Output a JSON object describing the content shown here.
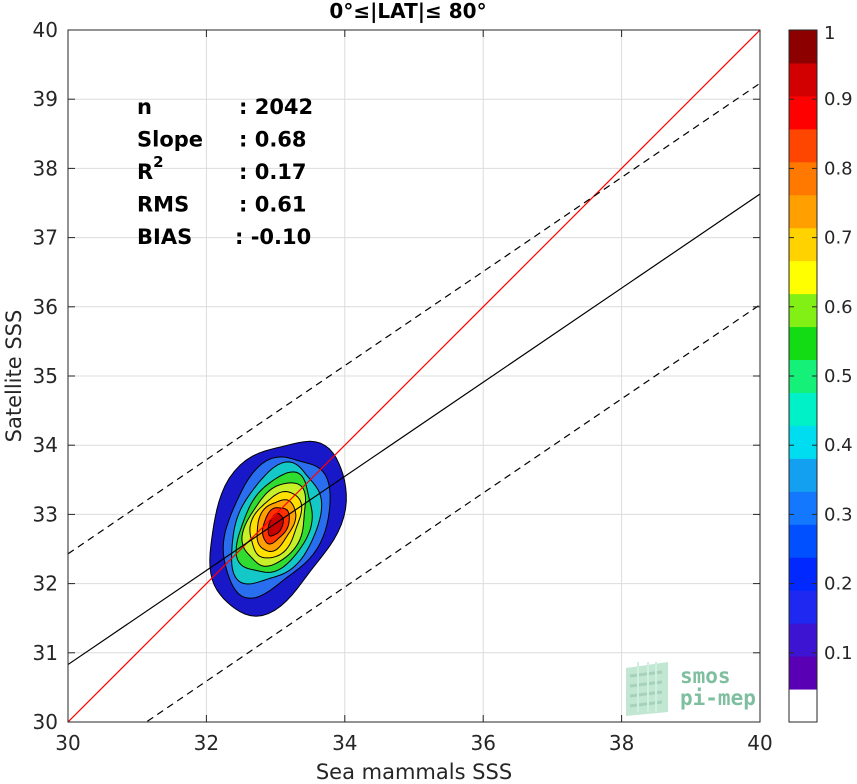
{
  "chart_data": {
    "type": "density-contour-scatter",
    "title": "0°≤|LAT|≤ 80°",
    "xlabel": "Sea mammals SSS",
    "ylabel": "Satellite SSS",
    "xlim": [
      30,
      40
    ],
    "ylim": [
      30,
      40
    ],
    "xticks": [
      "30",
      "32",
      "34",
      "36",
      "38",
      "40"
    ],
    "yticks": [
      "30",
      "31",
      "32",
      "33",
      "34",
      "35",
      "36",
      "37",
      "38",
      "39",
      "40"
    ],
    "grid": true,
    "stats": [
      {
        "label": "n",
        "value": ": 2042"
      },
      {
        "label": "Slope",
        "value": ": 0.68"
      },
      {
        "label": "R",
        "superscript": "2",
        "value": ": 0.17"
      },
      {
        "label": "RMS",
        "value": ": 0.61"
      },
      {
        "label": "BIAS",
        "value": ": -0.10"
      }
    ],
    "lines": {
      "identity": {
        "slope": 1,
        "intercept": 0,
        "color": "#ff0000"
      },
      "regression": {
        "slope": 0.68,
        "intercept": 10.43,
        "color": "#000000"
      },
      "upper_bound": {
        "slope": 0.68,
        "intercept": 12.03,
        "color": "#000000",
        "dash": true
      },
      "lower_bound": {
        "slope": 0.68,
        "intercept": 8.83,
        "color": "#000000",
        "dash": true
      }
    },
    "density": {
      "center": [
        33.0,
        32.85
      ],
      "levels": [
        {
          "level": 0.05,
          "sx": 0.92,
          "sy": 1.25,
          "color": "#1818c8"
        },
        {
          "level": 0.2,
          "sx": 0.72,
          "sy": 1.0,
          "color": "#2a6ef0"
        },
        {
          "level": 0.3,
          "sx": 0.6,
          "sy": 0.86,
          "color": "#14c8c8"
        },
        {
          "level": 0.45,
          "sx": 0.5,
          "sy": 0.72,
          "color": "#30dc30"
        },
        {
          "level": 0.55,
          "sx": 0.42,
          "sy": 0.6,
          "color": "#c8f028"
        },
        {
          "level": 0.65,
          "sx": 0.34,
          "sy": 0.48,
          "color": "#ffe000"
        },
        {
          "level": 0.75,
          "sx": 0.26,
          "sy": 0.37,
          "color": "#ffa000"
        },
        {
          "level": 0.85,
          "sx": 0.18,
          "sy": 0.26,
          "color": "#ff3000"
        },
        {
          "level": 0.95,
          "sx": 0.1,
          "sy": 0.16,
          "color": "#c80000"
        }
      ]
    },
    "colorbar": {
      "ticks": [
        "0.1",
        "0.2",
        "0.3",
        "0.4",
        "0.5",
        "0.6",
        "0.7",
        "0.8",
        "0.9",
        "1"
      ],
      "tick_values": [
        0.1,
        0.2,
        0.3,
        0.4,
        0.5,
        0.6,
        0.7,
        0.8,
        0.9,
        1.0
      ],
      "range": [
        0,
        1
      ],
      "colors": [
        "#ffffff",
        "#5a00b4",
        "#3c14d2",
        "#1e28f0",
        "#0028ff",
        "#0050ff",
        "#1478ff",
        "#14a0f0",
        "#00dcf0",
        "#00f0c8",
        "#14f078",
        "#14dc14",
        "#82f014",
        "#ffff00",
        "#ffd200",
        "#ffa000",
        "#ff7800",
        "#ff4600",
        "#ff0000",
        "#d20000",
        "#8c0000"
      ]
    },
    "logo": {
      "line1": "smos",
      "line2": "pi-mep"
    }
  }
}
